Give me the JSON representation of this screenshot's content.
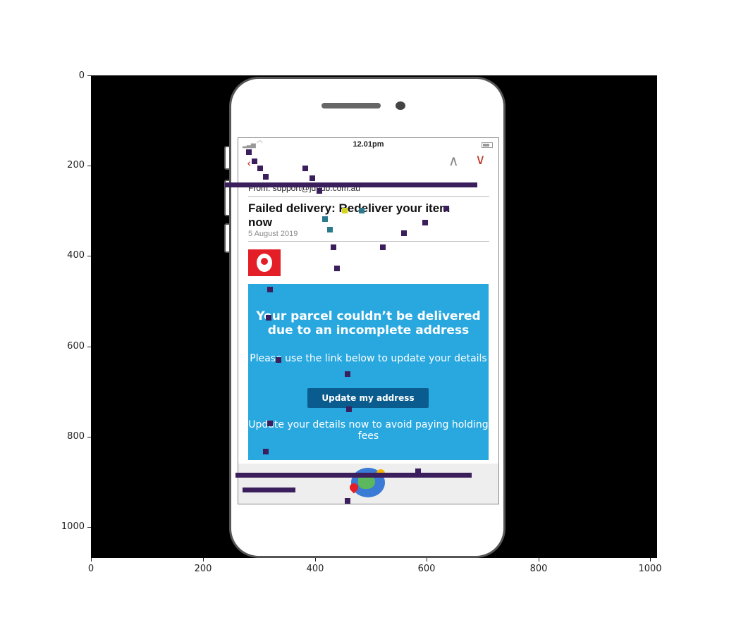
{
  "axes": {
    "y_ticks": [
      "0",
      "200",
      "400",
      "600",
      "800",
      "1000"
    ],
    "x_ticks": [
      "0",
      "200",
      "400",
      "600",
      "800",
      "1000"
    ]
  },
  "status_bar": {
    "time": "12.01pm"
  },
  "email": {
    "sender": "From: support@jdbdb.com.au",
    "subject": "Failed delivery: Redeliver your item now",
    "date": "5 August 2019"
  },
  "banner": {
    "headline": "Your parcel couldn’t be delivered due to an incomplete address",
    "subtext": "Please use the link below to update your details",
    "button_label": "Update my address",
    "note": "Update your details now to avoid paying holding fees"
  },
  "colors": {
    "banner_bg": "#29a8e0",
    "button_bg": "#0a5b8e",
    "brand_red": "#e31e26",
    "plot_bg": "#000000"
  },
  "icons": [
    "back-icon",
    "chevron-up-icon",
    "chevron-down-icon",
    "signal-icon",
    "wifi-icon",
    "battery-icon",
    "australia-post-logo",
    "globe-icon",
    "map-pin-icon"
  ]
}
